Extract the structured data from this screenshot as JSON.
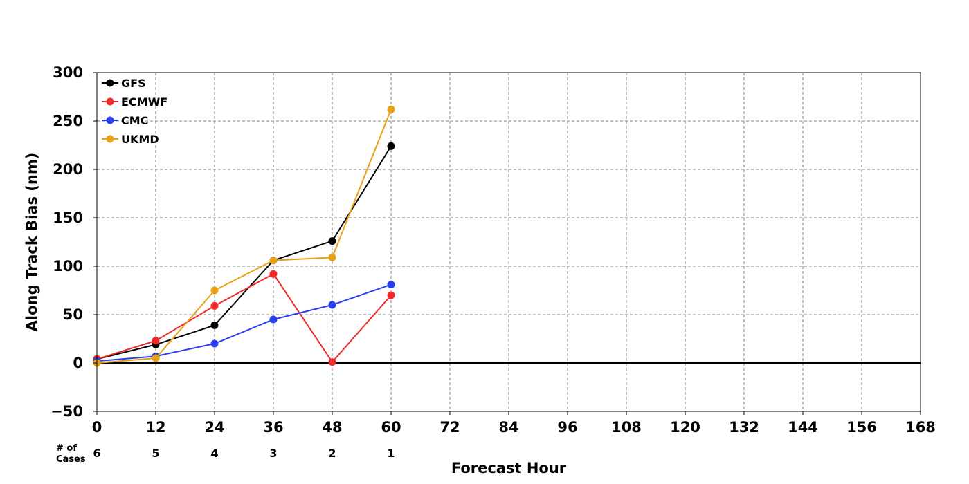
{
  "chart_data": {
    "type": "line",
    "title": "",
    "xlabel": "Forecast Hour",
    "ylabel": "Along Track Bias (nm)",
    "xlim": [
      0,
      168
    ],
    "ylim": [
      -50,
      300
    ],
    "x_ticks": [
      0,
      12,
      24,
      36,
      48,
      60,
      72,
      84,
      96,
      108,
      120,
      132,
      144,
      156,
      168
    ],
    "y_ticks": [
      -50,
      0,
      50,
      100,
      150,
      200,
      250,
      300
    ],
    "y_tick_labels": [
      "−50",
      "0",
      "50",
      "100",
      "150",
      "200",
      "250",
      "300"
    ],
    "grid": true,
    "zero_line": true,
    "legend_position": "top-left",
    "x": [
      0,
      12,
      24,
      36,
      48,
      60
    ],
    "series": [
      {
        "name": "GFS",
        "color": "#000000",
        "values": [
          4,
          19,
          39,
          106,
          126,
          224
        ]
      },
      {
        "name": "ECMWF",
        "color": "#f02828",
        "values": [
          4,
          23,
          59,
          92,
          1,
          70
        ]
      },
      {
        "name": "CMC",
        "color": "#2a40f0",
        "values": [
          2,
          7,
          20,
          45,
          60,
          81
        ]
      },
      {
        "name": "UKMD",
        "color": "#e8a014",
        "values": [
          0,
          5,
          75,
          106,
          109,
          262
        ]
      }
    ],
    "cases": {
      "label_line1": "# of",
      "label_line2": "Cases",
      "x": [
        0,
        12,
        24,
        36,
        48,
        60
      ],
      "counts": [
        "6",
        "5",
        "4",
        "3",
        "2",
        "1"
      ]
    }
  }
}
